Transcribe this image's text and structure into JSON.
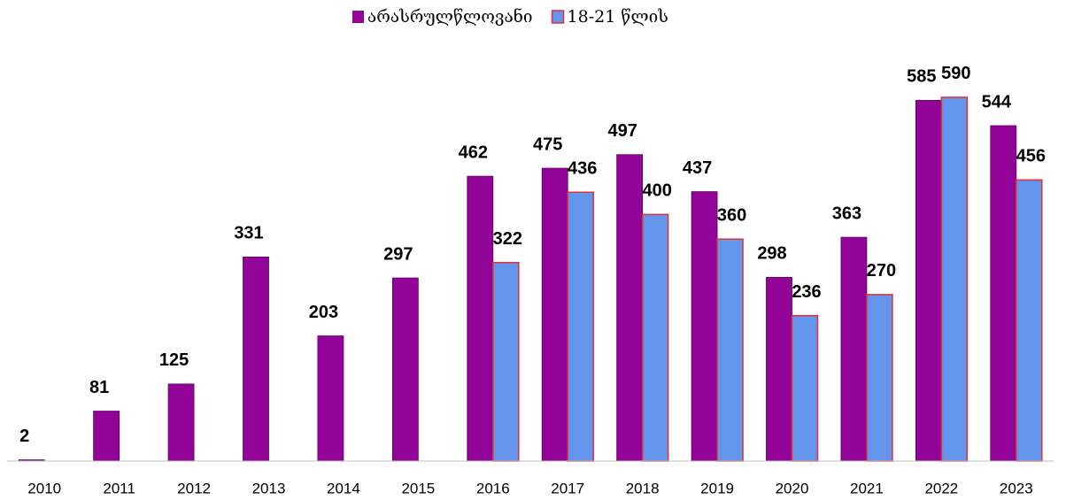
{
  "chart_data": {
    "type": "bar",
    "categories": [
      "2010",
      "2011",
      "2012",
      "2013",
      "2014",
      "2015",
      "2016",
      "2017",
      "2018",
      "2019",
      "2020",
      "2021",
      "2022",
      "2023"
    ],
    "series": [
      {
        "name": "არასრულწლოვანი",
        "color": "#920497",
        "values": [
          2,
          81,
          125,
          331,
          203,
          297,
          462,
          475,
          497,
          437,
          298,
          363,
          585,
          544
        ]
      },
      {
        "name": "18-21 წლის",
        "color": "#6495ed",
        "values": [
          null,
          null,
          null,
          null,
          null,
          null,
          322,
          436,
          400,
          360,
          236,
          270,
          590,
          456
        ]
      }
    ],
    "ylim": [
      0,
      600
    ],
    "legend": "top"
  }
}
